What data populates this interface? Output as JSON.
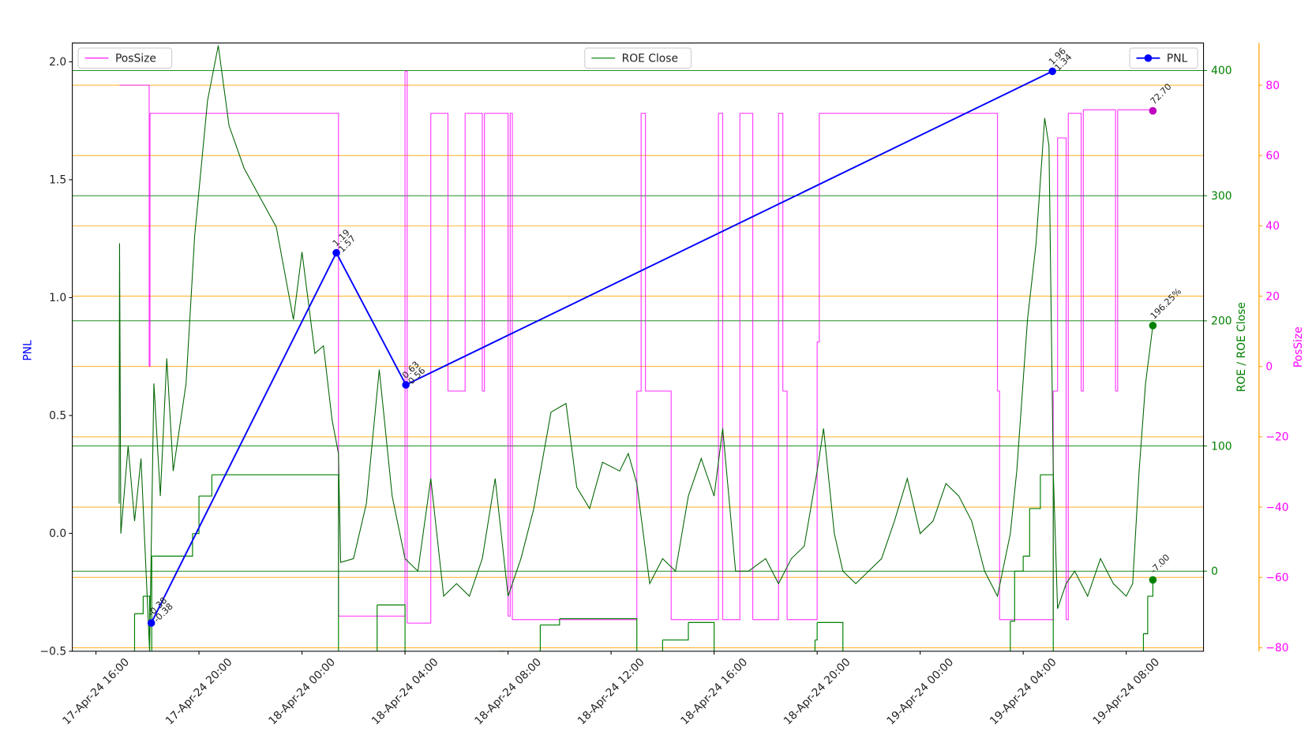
{
  "chart_data": {
    "type": "multi-axis-line",
    "xlabel_rotation": 45,
    "xlim": [
      "17-Apr-24 15:05",
      "19-Apr-24 11:00"
    ],
    "xticks": [
      "17-Apr-24 16:00",
      "17-Apr-24 20:00",
      "18-Apr-24 00:00",
      "18-Apr-24 04:00",
      "18-Apr-24 08:00",
      "18-Apr-24 12:00",
      "18-Apr-24 16:00",
      "18-Apr-24 20:00",
      "19-Apr-24 00:00",
      "19-Apr-24 04:00",
      "19-Apr-24 08:00"
    ],
    "ylabel": "PNL",
    "ylabel_color": "#0000ff",
    "ylim": [
      -0.5,
      2.08
    ],
    "yticks": [
      {
        "value": -0.5,
        "label": "−0.5"
      },
      {
        "value": 0,
        "label": "0.0"
      },
      {
        "value": 0.5,
        "label": "0.5"
      },
      {
        "value": 1,
        "label": "1.0"
      },
      {
        "value": 1.5,
        "label": "1.5"
      },
      {
        "value": 2,
        "label": "2.0"
      }
    ],
    "y2label": "ROE / ROE Close",
    "y2color": "#008000",
    "y2lim": [
      -64,
      422
    ],
    "y2ticks": [
      0,
      100,
      200,
      300,
      400
    ],
    "y2grid": true,
    "y2grid_color": "#008000",
    "y3label": "PosSize",
    "y3color": "#ff00ff",
    "y3spine_color": "#ffa500",
    "y3lim": [
      -81,
      92
    ],
    "y3ticks": [
      {
        "value": -80,
        "label": "−80"
      },
      {
        "value": -60,
        "label": "−60"
      },
      {
        "value": -40,
        "label": "−40"
      },
      {
        "value": -20,
        "label": "−20"
      },
      0,
      20,
      40,
      60,
      80
    ],
    "y3grid": true,
    "y3grid_color": "#ffa500",
    "series": [
      {
        "name": "PosSize",
        "color": "#ff00ff",
        "marker_color": "#bf00bf",
        "axis": "y3",
        "drawstyle": "steps-post",
        "legend_loc": "upper left",
        "end_label": "72.70",
        "x": [
          "17-Apr-24 16:55",
          "17-Apr-24 18:04",
          "17-Apr-24 18:06",
          "18-Apr-24 01:25",
          "18-Apr-24 04:00",
          "18-Apr-24 04:05",
          "18-Apr-24 05:00",
          "18-Apr-24 05:40",
          "18-Apr-24 06:20",
          "18-Apr-24 07:00",
          "18-Apr-24 07:05",
          "18-Apr-24 08:00",
          "18-Apr-24 08:05",
          "18-Apr-24 08:10",
          "18-Apr-24 13:00",
          "18-Apr-24 13:10",
          "18-Apr-24 13:20",
          "18-Apr-24 14:20",
          "18-Apr-24 16:10",
          "18-Apr-24 16:20",
          "18-Apr-24 17:00",
          "18-Apr-24 17:30",
          "18-Apr-24 18:30",
          "18-Apr-24 18:40",
          "18-Apr-24 18:50",
          "18-Apr-24 20:00",
          "18-Apr-24 20:05",
          "19-Apr-24 03:00",
          "19-Apr-24 03:05",
          "19-Apr-24 05:10",
          "19-Apr-24 05:20",
          "19-Apr-24 05:40",
          "19-Apr-24 05:45",
          "19-Apr-24 06:15",
          "19-Apr-24 06:20",
          "19-Apr-24 07:35",
          "19-Apr-24 07:40",
          "19-Apr-24 09:02"
        ],
        "values": [
          80,
          0,
          72,
          -71,
          84,
          -73,
          72,
          -7,
          72,
          -7,
          72,
          -71,
          72,
          -72,
          -7,
          72,
          -7,
          -72,
          72,
          -72,
          72,
          -72,
          72,
          -7,
          -72,
          7,
          72,
          -7,
          -72,
          -7,
          65,
          -72,
          72,
          -7,
          73,
          -7,
          73,
          72.7
        ]
      },
      {
        "color": "#006400",
        "marker_color": "#008000",
        "axis": "y2",
        "drawstyle": "default",
        "end_label": "196.25%",
        "x": [
          "17-Apr-24 16:54",
          "17-Apr-24 16:55",
          "17-Apr-24 16:58",
          "17-Apr-24 17:15",
          "17-Apr-24 17:30",
          "17-Apr-24 17:45",
          "17-Apr-24 18:05",
          "17-Apr-24 18:15",
          "17-Apr-24 18:30",
          "17-Apr-24 18:45",
          "17-Apr-24 19:00",
          "17-Apr-24 19:30",
          "17-Apr-24 19:50",
          "17-Apr-24 20:20",
          "17-Apr-24 20:45",
          "17-Apr-24 21:10",
          "17-Apr-24 21:45",
          "17-Apr-24 22:20",
          "17-Apr-24 23:00",
          "17-Apr-24 23:40",
          "18-Apr-24 00:00",
          "18-Apr-24 00:30",
          "18-Apr-24 00:50",
          "18-Apr-24 01:10",
          "18-Apr-24 01:25",
          "18-Apr-24 01:30",
          "18-Apr-24 02:00",
          "18-Apr-24 02:30",
          "18-Apr-24 03:00",
          "18-Apr-24 03:30",
          "18-Apr-24 04:00",
          "18-Apr-24 04:30",
          "18-Apr-24 05:00",
          "18-Apr-24 05:30",
          "18-Apr-24 06:00",
          "18-Apr-24 06:30",
          "18-Apr-24 07:00",
          "18-Apr-24 07:30",
          "18-Apr-24 08:00",
          "18-Apr-24 08:30",
          "18-Apr-24 09:00",
          "18-Apr-24 09:40",
          "18-Apr-24 10:15",
          "18-Apr-24 10:40",
          "18-Apr-24 11:10",
          "18-Apr-24 11:40",
          "18-Apr-24 12:20",
          "18-Apr-24 12:40",
          "18-Apr-24 13:00",
          "18-Apr-24 13:30",
          "18-Apr-24 14:00",
          "18-Apr-24 14:30",
          "18-Apr-24 15:00",
          "18-Apr-24 15:30",
          "18-Apr-24 16:00",
          "18-Apr-24 16:20",
          "18-Apr-24 16:50",
          "18-Apr-24 17:20",
          "18-Apr-24 18:00",
          "18-Apr-24 18:30",
          "18-Apr-24 19:00",
          "18-Apr-24 19:30",
          "18-Apr-24 20:00",
          "18-Apr-24 20:15",
          "18-Apr-24 20:40",
          "18-Apr-24 21:00",
          "18-Apr-24 21:30",
          "18-Apr-24 22:00",
          "18-Apr-24 22:30",
          "18-Apr-24 23:00",
          "18-Apr-24 23:30",
          "19-Apr-24 00:00",
          "19-Apr-24 00:30",
          "19-Apr-24 01:00",
          "19-Apr-24 01:30",
          "19-Apr-24 02:00",
          "19-Apr-24 02:30",
          "19-Apr-24 03:00",
          "19-Apr-24 03:30",
          "19-Apr-24 03:45",
          "19-Apr-24 04:10",
          "19-Apr-24 04:30",
          "19-Apr-24 04:50",
          "19-Apr-24 05:00",
          "19-Apr-24 05:10",
          "19-Apr-24 05:20",
          "19-Apr-24 05:40",
          "19-Apr-24 06:00",
          "19-Apr-24 06:30",
          "19-Apr-24 07:00",
          "19-Apr-24 07:30",
          "19-Apr-24 08:00",
          "19-Apr-24 08:15",
          "19-Apr-24 08:30",
          "19-Apr-24 08:45",
          "19-Apr-24 09:02"
        ],
        "values": [
          54,
          262,
          30,
          100,
          40,
          90,
          -64,
          150,
          60,
          170,
          80,
          150,
          268,
          376,
          420,
          356,
          322,
          300,
          275,
          201,
          255,
          174,
          180,
          121,
          94,
          7,
          10,
          54,
          161,
          60,
          10,
          0,
          74,
          -20,
          -10,
          -20,
          10,
          74,
          -20,
          10,
          50,
          127,
          134,
          67,
          50,
          87,
          80,
          94,
          70,
          -10,
          10,
          0,
          60,
          90,
          60,
          114,
          0,
          0,
          10,
          -10,
          10,
          20,
          80,
          114,
          30,
          0,
          -10,
          0,
          10,
          40,
          74,
          30,
          40,
          70,
          60,
          40,
          0,
          -20,
          30,
          80,
          201,
          262,
          362,
          340,
          80,
          -30,
          -10,
          0,
          -20,
          10,
          -10,
          -20,
          -10,
          80,
          150,
          196.25
        ]
      },
      {
        "name": "ROE Close",
        "color": "#008000",
        "marker_color": "#008000",
        "axis": "y2",
        "drawstyle": "steps-post",
        "legend_loc": "upper center",
        "end_label": "-7.00",
        "x": [
          "17-Apr-24 16:57",
          "17-Apr-24 17:30",
          "17-Apr-24 17:50",
          "17-Apr-24 18:05",
          "17-Apr-24 18:10",
          "17-Apr-24 19:45",
          "17-Apr-24 20:00",
          "17-Apr-24 20:30",
          "18-Apr-24 01:25",
          "18-Apr-24 02:55",
          "18-Apr-24 04:00",
          "18-Apr-24 07:40",
          "18-Apr-24 07:50",
          "18-Apr-24 09:15",
          "18-Apr-24 10:00",
          "18-Apr-24 13:00",
          "18-Apr-24 14:00",
          "18-Apr-24 15:00",
          "18-Apr-24 16:00",
          "18-Apr-24 19:55",
          "18-Apr-24 20:00",
          "18-Apr-24 21:00",
          "19-Apr-24 03:30",
          "19-Apr-24 03:40",
          "19-Apr-24 04:00",
          "19-Apr-24 04:15",
          "19-Apr-24 04:40",
          "19-Apr-24 05:10",
          "19-Apr-24 08:40",
          "19-Apr-24 08:50",
          "19-Apr-24 09:02"
        ],
        "values": [
          -70,
          -34,
          -20,
          -70,
          12,
          30,
          60,
          77,
          -70,
          -27,
          -70,
          -64,
          -70,
          -43,
          -38,
          -70,
          -55,
          -41,
          -70,
          -55,
          -41,
          -70,
          -40,
          0,
          12,
          50,
          77,
          -70,
          -50,
          -20,
          -7
        ]
      },
      {
        "name": "PNL",
        "color": "#0000ff",
        "marker_color": "#0000ff",
        "axis": "y",
        "drawstyle": "default",
        "marker": "o",
        "legend_loc": "upper right",
        "x": [
          "17-Apr-24 18:09",
          "18-Apr-24 01:20",
          "18-Apr-24 04:02",
          "19-Apr-24 05:08"
        ],
        "values": [
          -0.38,
          1.19,
          0.63,
          1.96
        ],
        "annotation_values": [
          -0.38,
          1.57,
          0.56,
          1.34
        ]
      }
    ]
  }
}
